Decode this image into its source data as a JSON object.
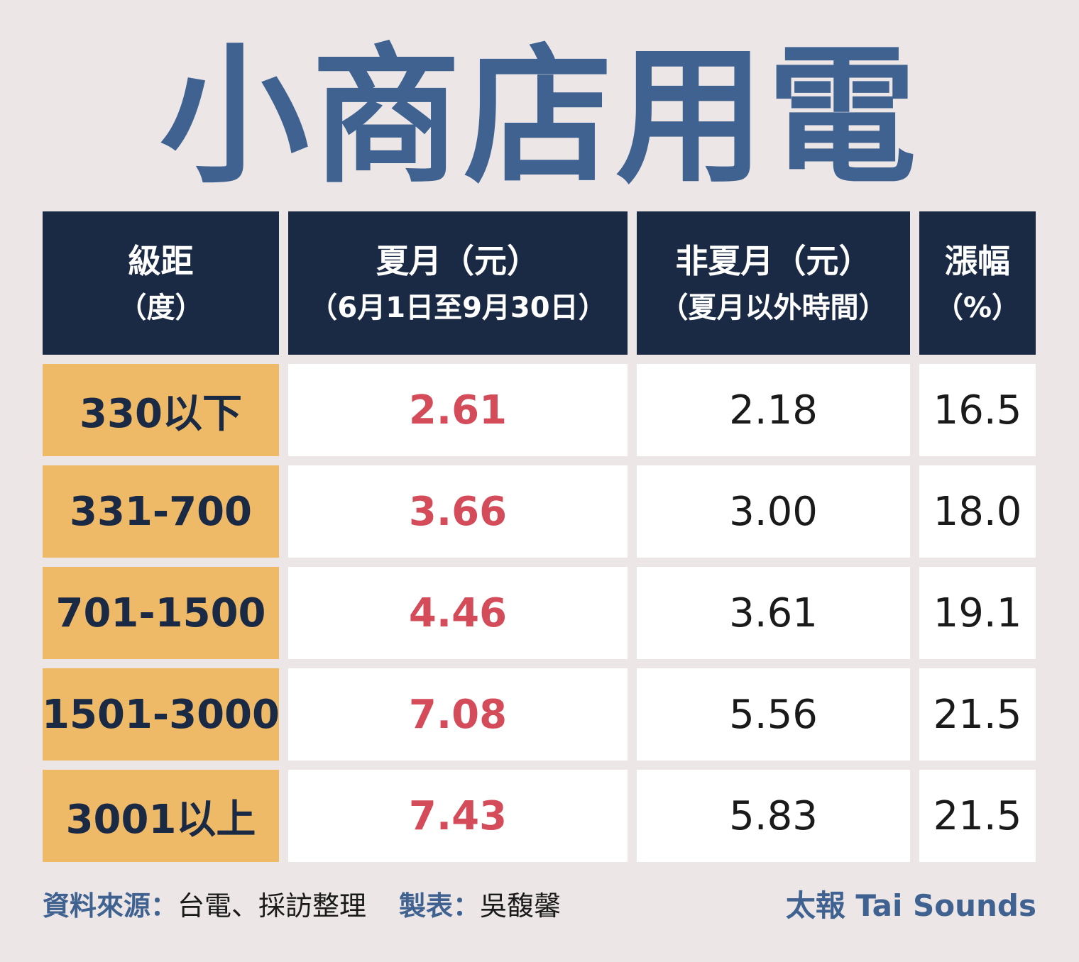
{
  "title": "小商店用電",
  "header": {
    "col1": {
      "line1": "級距",
      "line2": "（度）"
    },
    "col2": {
      "line1": "夏月（元）",
      "line2": "（6月1日至9月30日）"
    },
    "col3": {
      "line1": "非夏月（元）",
      "line2": "（夏月以外時間）"
    },
    "col4": {
      "line1": "漲幅",
      "line2": "（%）"
    }
  },
  "rows": [
    {
      "tier": "330以下",
      "summer": "2.61",
      "non_summer": "2.18",
      "increase": "16.5"
    },
    {
      "tier": "331-700",
      "summer": "3.66",
      "non_summer": "3.00",
      "increase": "18.0"
    },
    {
      "tier": "701-1500",
      "summer": "4.46",
      "non_summer": "3.61",
      "increase": "19.1"
    },
    {
      "tier": "1501-3000",
      "summer": "7.08",
      "non_summer": "5.56",
      "increase": "21.5"
    },
    {
      "tier": "3001以上",
      "summer": "7.43",
      "non_summer": "5.83",
      "increase": "21.5"
    }
  ],
  "footer": {
    "source_label": "資料來源：",
    "source_value": "台電、採訪整理",
    "maker_label": "製表：",
    "maker_value": "吳馥馨",
    "brand": "太報 Tai Sounds"
  },
  "colors": {
    "background": "#ece6e6",
    "title": "#3f6290",
    "header_bg": "#1b2a44",
    "tier_bg": "#efba68",
    "summer_text": "#d44b5a"
  },
  "chart_data": {
    "type": "table",
    "title": "小商店用電",
    "columns": [
      "級距（度）",
      "夏月（元）（6月1日至9月30日）",
      "非夏月（元）（夏月以外時間）",
      "漲幅（%）"
    ],
    "rows": [
      [
        "330以下",
        2.61,
        2.18,
        16.5
      ],
      [
        "331-700",
        3.66,
        3.0,
        18.0
      ],
      [
        "701-1500",
        4.46,
        3.61,
        19.1
      ],
      [
        "1501-3000",
        7.08,
        5.56,
        21.5
      ],
      [
        "3001以上",
        7.43,
        5.83,
        21.5
      ]
    ]
  }
}
